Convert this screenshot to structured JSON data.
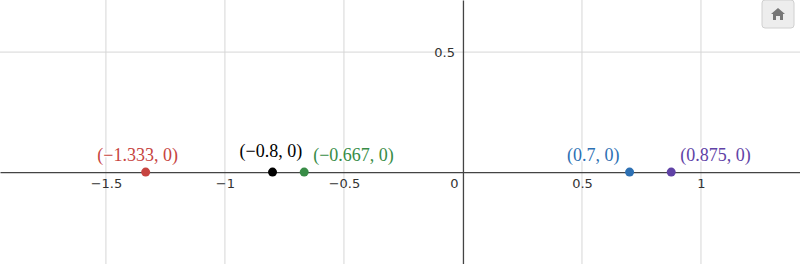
{
  "chart_data": {
    "type": "scatter",
    "x": [
      -1.333,
      -0.8,
      -0.667,
      0.7,
      0.875
    ],
    "values": [
      0,
      0,
      0,
      0,
      0
    ],
    "labels": [
      "(−1.333, 0)",
      "(−0.8, 0)",
      "(−0.667, 0)",
      "(0.7, 0)",
      "(0.875, 0)"
    ],
    "colors": [
      "#c74440",
      "#000000",
      "#388c46",
      "#2d70b3",
      "#6042a6"
    ],
    "xlim": [
      -1.945,
      1.416
    ],
    "ylim": [
      -0.383,
      0.717
    ],
    "xticks": [
      {
        "value": -1.5,
        "label": "−1.5"
      },
      {
        "value": -1,
        "label": "−1"
      },
      {
        "value": -0.5,
        "label": "−0.5"
      },
      0,
      0.5,
      1
    ],
    "yticks": [
      0.5
    ],
    "grid": true
  }
}
